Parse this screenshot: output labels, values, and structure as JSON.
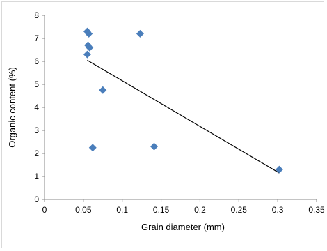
{
  "chart_data": {
    "type": "scatter",
    "xlabel": "Grain diameter (mm)",
    "ylabel": "Organic content (%)",
    "xlim": [
      0,
      0.35
    ],
    "ylim": [
      0,
      8
    ],
    "x_ticks": [
      "0",
      "0.05",
      "0.1",
      "0.15",
      "0.2",
      "0.25",
      "0.3",
      "0.35"
    ],
    "y_ticks": [
      "0",
      "1",
      "2",
      "3",
      "4",
      "5",
      "6",
      "7",
      "8"
    ],
    "grid": false,
    "legend": "none",
    "marker": "diamond",
    "series": [
      {
        "points": [
          {
            "x": 0.055,
            "y": 7.3
          },
          {
            "x": 0.057,
            "y": 7.2
          },
          {
            "x": 0.056,
            "y": 6.7
          },
          {
            "x": 0.058,
            "y": 6.6
          },
          {
            "x": 0.055,
            "y": 6.3
          },
          {
            "x": 0.123,
            "y": 7.2
          },
          {
            "x": 0.075,
            "y": 4.75
          },
          {
            "x": 0.062,
            "y": 2.25
          },
          {
            "x": 0.141,
            "y": 2.3
          },
          {
            "x": 0.302,
            "y": 1.3
          }
        ],
        "color": "#4a7ebb"
      }
    ],
    "trendline": {
      "type": "linear",
      "x_start": 0.055,
      "y_start": 6.05,
      "x_end": 0.302,
      "y_end": 1.15,
      "color": "#000000"
    }
  }
}
